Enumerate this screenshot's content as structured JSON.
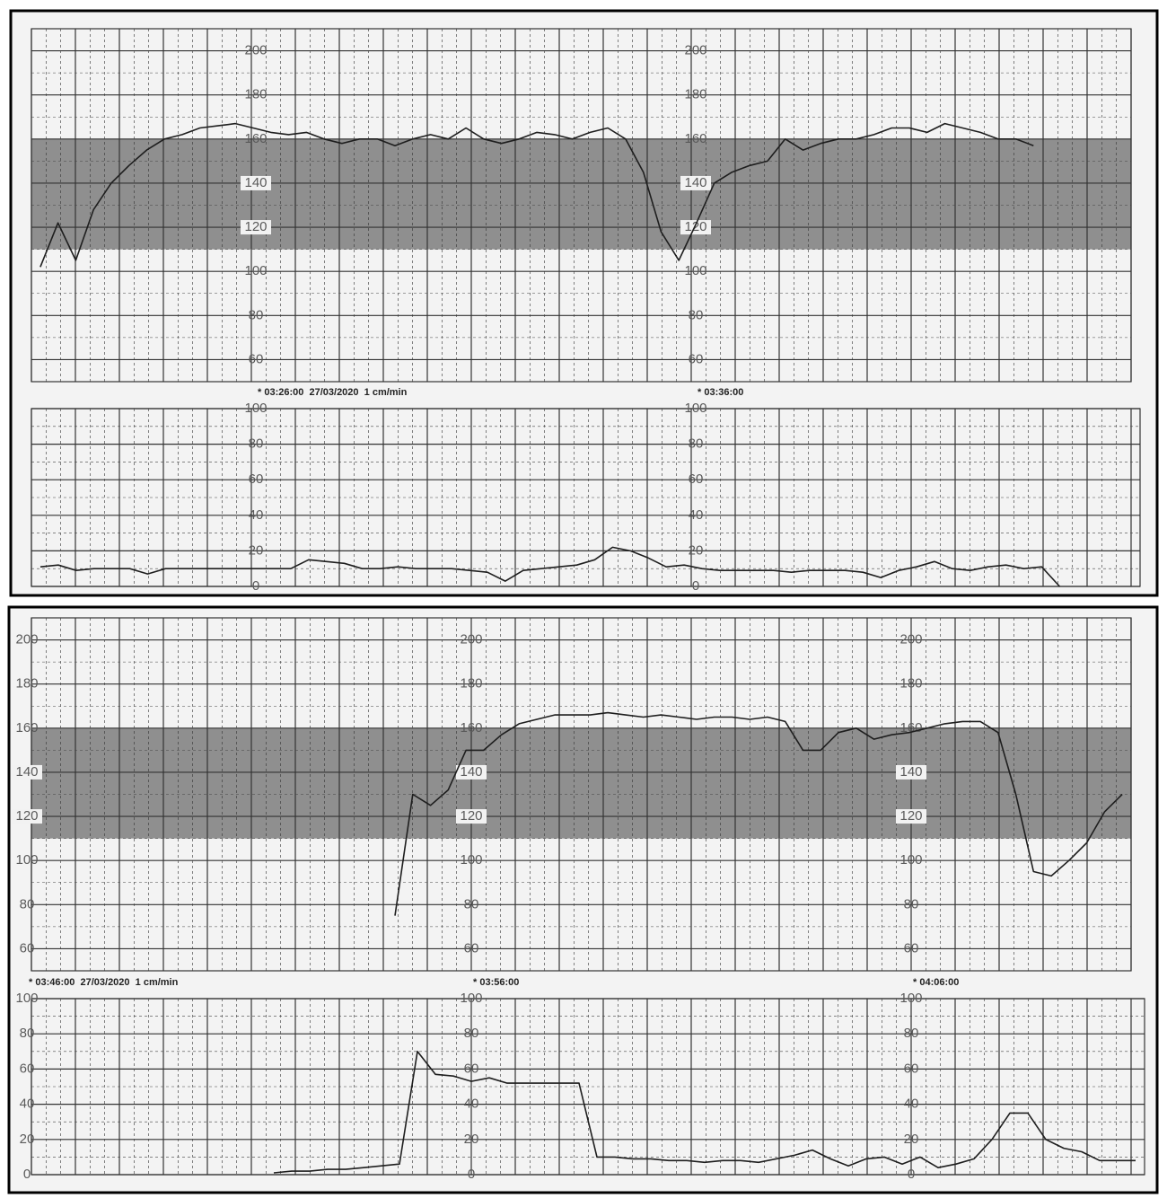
{
  "chart_data": [
    {
      "type": "line",
      "color": "#1e1e1e",
      "grid": true,
      "band": [
        110,
        160
      ],
      "band_color": "#8f8f8f",
      "ylim": [
        50,
        210
      ],
      "yticks": [
        60,
        80,
        100,
        120,
        140,
        160,
        180,
        200
      ],
      "annotations": [
        "* 03:26:00  27/03/2020  1 cm/min",
        "* 03:36:00"
      ],
      "values": [
        102,
        122,
        105,
        128,
        140,
        148,
        155,
        160,
        162,
        165,
        166,
        167,
        165,
        163,
        162,
        163,
        160,
        158,
        160,
        160,
        157,
        160,
        162,
        160,
        165,
        160,
        158,
        160,
        163,
        162,
        160,
        163,
        165,
        160,
        145,
        118,
        105,
        122,
        140,
        145,
        148,
        150,
        160,
        155,
        158,
        160,
        160,
        162,
        165,
        165,
        163,
        167,
        165,
        163,
        160,
        160,
        157,
        null,
        null,
        null,
        null,
        null
      ]
    },
    {
      "type": "line",
      "color": "#1e1e1e",
      "grid": true,
      "ylim": [
        0,
        100
      ],
      "yticks": [
        0,
        20,
        40,
        60,
        80,
        100
      ],
      "values": [
        11,
        12,
        9,
        10,
        10,
        10,
        7,
        10,
        10,
        10,
        10,
        10,
        10,
        10,
        10,
        15,
        14,
        13,
        10,
        10,
        11,
        10,
        10,
        10,
        9,
        8,
        3,
        9,
        10,
        11,
        12,
        15,
        22,
        20,
        16,
        11,
        12,
        10,
        9,
        9,
        9,
        9,
        8,
        9,
        9,
        9,
        8,
        5,
        9,
        11,
        14,
        10,
        9,
        11,
        12,
        10,
        11,
        0,
        null,
        null,
        null,
        null
      ]
    },
    {
      "type": "line",
      "color": "#1e1e1e",
      "grid": true,
      "band": [
        110,
        160
      ],
      "band_color": "#8f8f8f",
      "ylim": [
        50,
        210
      ],
      "yticks": [
        60,
        80,
        100,
        120,
        140,
        160,
        180,
        200
      ],
      "annotations": [
        "* 03:46:00  27/03/2020  1 cm/min",
        "* 03:56:00",
        "* 04:06:00"
      ],
      "values": [
        null,
        null,
        null,
        null,
        null,
        null,
        null,
        null,
        null,
        null,
        null,
        null,
        null,
        null,
        null,
        null,
        null,
        null,
        null,
        null,
        75,
        130,
        125,
        132,
        150,
        150,
        157,
        162,
        164,
        166,
        166,
        166,
        167,
        166,
        165,
        166,
        165,
        164,
        165,
        165,
        164,
        165,
        163,
        150,
        150,
        158,
        160,
        155,
        157,
        158,
        160,
        162,
        163,
        163,
        158,
        130,
        95,
        93,
        100,
        108,
        122,
        130
      ]
    },
    {
      "type": "line",
      "color": "#1e1e1e",
      "grid": true,
      "ylim": [
        0,
        100
      ],
      "yticks": [
        0,
        20,
        40,
        60,
        80,
        100
      ],
      "values": [
        null,
        null,
        null,
        null,
        null,
        null,
        null,
        null,
        null,
        null,
        null,
        null,
        null,
        1,
        2,
        2,
        3,
        3,
        4,
        5,
        6,
        70,
        57,
        56,
        53,
        55,
        52,
        52,
        52,
        52,
        52,
        10,
        10,
        9,
        9,
        8,
        8,
        7,
        8,
        8,
        7,
        9,
        11,
        14,
        9,
        5,
        9,
        10,
        6,
        10,
        4,
        6,
        9,
        20,
        35,
        35,
        20,
        15,
        13,
        8,
        8,
        8
      ]
    }
  ]
}
